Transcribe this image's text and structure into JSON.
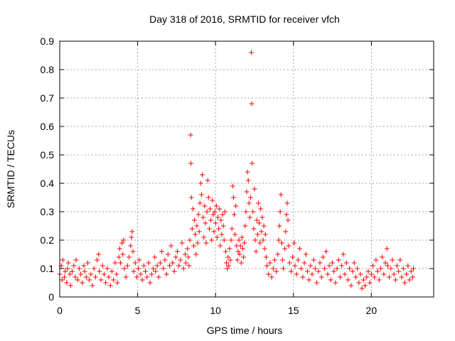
{
  "chart_data": {
    "type": "scatter",
    "title": "Day 318 of 2016, SRMTID for receiver vfch",
    "xlabel": "GPS time / hours",
    "ylabel": "SRMTID / TECUs",
    "xlim": [
      0,
      24
    ],
    "ylim": [
      0,
      0.9
    ],
    "xticks": [
      0,
      5,
      10,
      15,
      20
    ],
    "yticks": [
      0,
      0.1,
      0.2,
      0.3,
      0.4,
      0.5,
      0.6,
      0.7,
      0.8,
      0.9
    ],
    "xtick_labels": [
      "0",
      "5",
      "10",
      "15",
      "20"
    ],
    "ytick_labels": [
      "0",
      "0.1",
      "0.2",
      "0.3",
      "0.4",
      "0.5",
      "0.6",
      "0.7",
      "0.8",
      "0.9"
    ],
    "grid": true,
    "marker": "+",
    "color": "#ff0000",
    "series": [
      {
        "name": "SRMTID",
        "points": [
          [
            0.0,
            0.08
          ],
          [
            0.1,
            0.11
          ],
          [
            0.15,
            0.06
          ],
          [
            0.2,
            0.13
          ],
          [
            0.3,
            0.07
          ],
          [
            0.35,
            0.09
          ],
          [
            0.45,
            0.05
          ],
          [
            0.5,
            0.1
          ],
          [
            0.55,
            0.12
          ],
          [
            0.65,
            0.08
          ],
          [
            0.7,
            0.04
          ],
          [
            0.8,
            0.09
          ],
          [
            0.9,
            0.11
          ],
          [
            1.0,
            0.07
          ],
          [
            1.05,
            0.13
          ],
          [
            1.15,
            0.06
          ],
          [
            1.25,
            0.1
          ],
          [
            1.35,
            0.08
          ],
          [
            1.45,
            0.05
          ],
          [
            1.55,
            0.11
          ],
          [
            1.6,
            0.09
          ],
          [
            1.7,
            0.07
          ],
          [
            1.8,
            0.12
          ],
          [
            1.9,
            0.06
          ],
          [
            2.0,
            0.08
          ],
          [
            2.1,
            0.04
          ],
          [
            2.2,
            0.1
          ],
          [
            2.3,
            0.07
          ],
          [
            2.4,
            0.13
          ],
          [
            2.5,
            0.15
          ],
          [
            2.55,
            0.09
          ],
          [
            2.65,
            0.06
          ],
          [
            2.75,
            0.11
          ],
          [
            2.85,
            0.08
          ],
          [
            2.95,
            0.05
          ],
          [
            3.05,
            0.1
          ],
          [
            3.15,
            0.07
          ],
          [
            3.25,
            0.04
          ],
          [
            3.35,
            0.09
          ],
          [
            3.45,
            0.06
          ],
          [
            3.55,
            0.12
          ],
          [
            3.65,
            0.08
          ],
          [
            3.7,
            0.05
          ],
          [
            3.8,
            0.14
          ],
          [
            3.85,
            0.17
          ],
          [
            3.9,
            0.12
          ],
          [
            4.0,
            0.19
          ],
          [
            4.05,
            0.15
          ],
          [
            4.1,
            0.2
          ],
          [
            4.15,
            0.1
          ],
          [
            4.25,
            0.07
          ],
          [
            4.35,
            0.11
          ],
          [
            4.45,
            0.14
          ],
          [
            4.55,
            0.18
          ],
          [
            4.6,
            0.21
          ],
          [
            4.65,
            0.23
          ],
          [
            4.7,
            0.16
          ],
          [
            4.75,
            0.09
          ],
          [
            4.85,
            0.12
          ],
          [
            4.95,
            0.07
          ],
          [
            5.05,
            0.1
          ],
          [
            5.1,
            0.13
          ],
          [
            5.2,
            0.08
          ],
          [
            5.3,
            0.06
          ],
          [
            5.4,
            0.11
          ],
          [
            5.5,
            0.09
          ],
          [
            5.6,
            0.07
          ],
          [
            5.7,
            0.12
          ],
          [
            5.8,
            0.05
          ],
          [
            5.9,
            0.08
          ],
          [
            6.0,
            0.1
          ],
          [
            6.1,
            0.14
          ],
          [
            6.15,
            0.09
          ],
          [
            6.25,
            0.11
          ],
          [
            6.35,
            0.07
          ],
          [
            6.45,
            0.12
          ],
          [
            6.55,
            0.16
          ],
          [
            6.65,
            0.1
          ],
          [
            6.75,
            0.13
          ],
          [
            6.85,
            0.08
          ],
          [
            6.95,
            0.15
          ],
          [
            7.05,
            0.11
          ],
          [
            7.15,
            0.18
          ],
          [
            7.25,
            0.12
          ],
          [
            7.35,
            0.09
          ],
          [
            7.45,
            0.14
          ],
          [
            7.55,
            0.16
          ],
          [
            7.65,
            0.11
          ],
          [
            7.75,
            0.13
          ],
          [
            7.85,
            0.19
          ],
          [
            7.95,
            0.1
          ],
          [
            8.05,
            0.15
          ],
          [
            8.1,
            0.12
          ],
          [
            8.2,
            0.17
          ],
          [
            8.25,
            0.14
          ],
          [
            8.3,
            0.11
          ],
          [
            8.35,
            0.2
          ],
          [
            8.4,
            0.57
          ],
          [
            8.42,
            0.47
          ],
          [
            8.45,
            0.35
          ],
          [
            8.5,
            0.24
          ],
          [
            8.55,
            0.31
          ],
          [
            8.6,
            0.18
          ],
          [
            8.65,
            0.27
          ],
          [
            8.7,
            0.22
          ],
          [
            8.75,
            0.15
          ],
          [
            8.8,
            0.25
          ],
          [
            8.85,
            0.19
          ],
          [
            8.9,
            0.29
          ],
          [
            8.95,
            0.23
          ],
          [
            9.0,
            0.33
          ],
          [
            9.05,
            0.4
          ],
          [
            9.1,
            0.36
          ],
          [
            9.15,
            0.43
          ],
          [
            9.2,
            0.28
          ],
          [
            9.25,
            0.21
          ],
          [
            9.3,
            0.32
          ],
          [
            9.35,
            0.26
          ],
          [
            9.4,
            0.19
          ],
          [
            9.45,
            0.3
          ],
          [
            9.5,
            0.41
          ],
          [
            9.55,
            0.35
          ],
          [
            9.6,
            0.24
          ],
          [
            9.65,
            0.31
          ],
          [
            9.7,
            0.27
          ],
          [
            9.75,
            0.2
          ],
          [
            9.8,
            0.34
          ],
          [
            9.85,
            0.29
          ],
          [
            9.9,
            0.23
          ],
          [
            9.95,
            0.3
          ],
          [
            10.0,
            0.26
          ],
          [
            10.05,
            0.32
          ],
          [
            10.1,
            0.21
          ],
          [
            10.15,
            0.28
          ],
          [
            10.2,
            0.24
          ],
          [
            10.25,
            0.31
          ],
          [
            10.3,
            0.18
          ],
          [
            10.35,
            0.27
          ],
          [
            10.4,
            0.22
          ],
          [
            10.45,
            0.29
          ],
          [
            10.5,
            0.25
          ],
          [
            10.55,
            0.2
          ],
          [
            10.6,
            0.3
          ],
          [
            10.65,
            0.16
          ],
          [
            10.7,
            0.12
          ],
          [
            10.75,
            0.1
          ],
          [
            10.8,
            0.14
          ],
          [
            10.85,
            0.11
          ],
          [
            10.9,
            0.17
          ],
          [
            10.95,
            0.13
          ],
          [
            11.0,
            0.2
          ],
          [
            11.05,
            0.24
          ],
          [
            11.1,
            0.39
          ],
          [
            11.15,
            0.35
          ],
          [
            11.2,
            0.29
          ],
          [
            11.25,
            0.22
          ],
          [
            11.3,
            0.32
          ],
          [
            11.35,
            0.18
          ],
          [
            11.4,
            0.13
          ],
          [
            11.45,
            0.16
          ],
          [
            11.5,
            0.2
          ],
          [
            11.55,
            0.15
          ],
          [
            11.6,
            0.18
          ],
          [
            11.65,
            0.12
          ],
          [
            11.7,
            0.21
          ],
          [
            11.75,
            0.17
          ],
          [
            11.8,
            0.14
          ],
          [
            11.85,
            0.19
          ],
          [
            11.9,
            0.25
          ],
          [
            11.95,
            0.3
          ],
          [
            12.0,
            0.37
          ],
          [
            12.05,
            0.44
          ],
          [
            12.1,
            0.41
          ],
          [
            12.15,
            0.33
          ],
          [
            12.2,
            0.28
          ],
          [
            12.25,
            0.35
          ],
          [
            12.3,
            0.86
          ],
          [
            12.32,
            0.68
          ],
          [
            12.35,
            0.47
          ],
          [
            12.4,
            0.3
          ],
          [
            12.45,
            0.24
          ],
          [
            12.5,
            0.38
          ],
          [
            12.55,
            0.2
          ],
          [
            12.6,
            0.16
          ],
          [
            12.65,
            0.27
          ],
          [
            12.7,
            0.22
          ],
          [
            12.75,
            0.33
          ],
          [
            12.8,
            0.26
          ],
          [
            12.85,
            0.19
          ],
          [
            12.9,
            0.31
          ],
          [
            12.95,
            0.23
          ],
          [
            13.0,
            0.28
          ],
          [
            13.05,
            0.2
          ],
          [
            13.1,
            0.25
          ],
          [
            13.15,
            0.17
          ],
          [
            13.2,
            0.22
          ],
          [
            13.25,
            0.14
          ],
          [
            13.3,
            0.11
          ],
          [
            13.4,
            0.08
          ],
          [
            13.5,
            0.12
          ],
          [
            13.6,
            0.07
          ],
          [
            13.7,
            0.1
          ],
          [
            13.8,
            0.13
          ],
          [
            13.9,
            0.09
          ],
          [
            14.0,
            0.15
          ],
          [
            14.05,
            0.2
          ],
          [
            14.1,
            0.25
          ],
          [
            14.15,
            0.3
          ],
          [
            14.2,
            0.36
          ],
          [
            14.25,
            0.19
          ],
          [
            14.3,
            0.13
          ],
          [
            14.35,
            0.1
          ],
          [
            14.45,
            0.17
          ],
          [
            14.5,
            0.23
          ],
          [
            14.55,
            0.29
          ],
          [
            14.6,
            0.33
          ],
          [
            14.65,
            0.27
          ],
          [
            14.7,
            0.18
          ],
          [
            14.75,
            0.12
          ],
          [
            14.85,
            0.09
          ],
          [
            14.95,
            0.14
          ],
          [
            15.05,
            0.19
          ],
          [
            15.1,
            0.11
          ],
          [
            15.2,
            0.08
          ],
          [
            15.3,
            0.13
          ],
          [
            15.4,
            0.17
          ],
          [
            15.5,
            0.1
          ],
          [
            15.6,
            0.07
          ],
          [
            15.7,
            0.12
          ],
          [
            15.8,
            0.15
          ],
          [
            15.9,
            0.09
          ],
          [
            16.0,
            0.06
          ],
          [
            16.1,
            0.11
          ],
          [
            16.2,
            0.08
          ],
          [
            16.3,
            0.13
          ],
          [
            16.4,
            0.1
          ],
          [
            16.5,
            0.05
          ],
          [
            16.6,
            0.09
          ],
          [
            16.7,
            0.12
          ],
          [
            16.8,
            0.07
          ],
          [
            16.9,
            0.14
          ],
          [
            17.0,
            0.1
          ],
          [
            17.1,
            0.16
          ],
          [
            17.2,
            0.08
          ],
          [
            17.3,
            0.11
          ],
          [
            17.4,
            0.06
          ],
          [
            17.5,
            0.12
          ],
          [
            17.6,
            0.09
          ],
          [
            17.7,
            0.05
          ],
          [
            17.8,
            0.1
          ],
          [
            17.9,
            0.13
          ],
          [
            18.0,
            0.07
          ],
          [
            18.1,
            0.11
          ],
          [
            18.2,
            0.15
          ],
          [
            18.3,
            0.08
          ],
          [
            18.4,
            0.12
          ],
          [
            18.5,
            0.06
          ],
          [
            18.6,
            0.1
          ],
          [
            18.7,
            0.04
          ],
          [
            18.8,
            0.09
          ],
          [
            18.9,
            0.12
          ],
          [
            19.0,
            0.07
          ],
          [
            19.1,
            0.1
          ],
          [
            19.2,
            0.05
          ],
          [
            19.3,
            0.08
          ],
          [
            19.4,
            0.03
          ],
          [
            19.5,
            0.06
          ],
          [
            19.6,
            0.04
          ],
          [
            19.7,
            0.07
          ],
          [
            19.8,
            0.09
          ],
          [
            19.9,
            0.05
          ],
          [
            20.0,
            0.08
          ],
          [
            20.1,
            0.11
          ],
          [
            20.2,
            0.07
          ],
          [
            20.3,
            0.13
          ],
          [
            20.4,
            0.09
          ],
          [
            20.5,
            0.06
          ],
          [
            20.6,
            0.1
          ],
          [
            20.7,
            0.14
          ],
          [
            20.8,
            0.08
          ],
          [
            20.9,
            0.12
          ],
          [
            21.0,
            0.17
          ],
          [
            21.05,
            0.11
          ],
          [
            21.15,
            0.07
          ],
          [
            21.25,
            0.1
          ],
          [
            21.35,
            0.13
          ],
          [
            21.45,
            0.08
          ],
          [
            21.55,
            0.06
          ],
          [
            21.65,
            0.11
          ],
          [
            21.75,
            0.09
          ],
          [
            21.85,
            0.13
          ],
          [
            21.95,
            0.07
          ],
          [
            22.05,
            0.1
          ],
          [
            22.15,
            0.05
          ],
          [
            22.25,
            0.08
          ],
          [
            22.35,
            0.11
          ],
          [
            22.45,
            0.06
          ],
          [
            22.55,
            0.09
          ],
          [
            22.65,
            0.07
          ],
          [
            22.7,
            0.1
          ]
        ]
      }
    ]
  }
}
